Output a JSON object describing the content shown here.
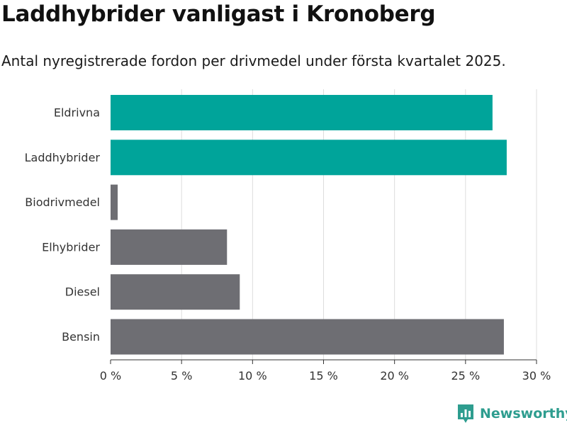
{
  "header": {
    "title": "Laddhybrider vanligast i Kronoberg",
    "subtitle": "Antal nyregistrerade fordon per drivmedel under första kvartalet 2025."
  },
  "brand": {
    "name": "Newsworthy",
    "icon": "newsworthy-logo-icon",
    "color": "#2e9d8f"
  },
  "chart_data": {
    "type": "bar",
    "orientation": "horizontal",
    "categories": [
      "Eldrivna",
      "Laddhybrider",
      "Biodrivmedel",
      "Elhybrider",
      "Diesel",
      "Bensin"
    ],
    "values": [
      26.9,
      27.9,
      0.5,
      8.2,
      9.1,
      27.7
    ],
    "unit": "%",
    "xlim": [
      0,
      30
    ],
    "xticks": [
      0,
      5,
      10,
      15,
      20,
      25,
      30
    ],
    "xtick_labels": [
      "0 %",
      "5 %",
      "10 %",
      "15 %",
      "20 %",
      "25 %",
      "30 %"
    ],
    "bar_colors": [
      "#00a49a",
      "#00a49a",
      "#6e6e73",
      "#6e6e73",
      "#6e6e73",
      "#6e6e73"
    ],
    "grid": "vertical",
    "xlabel": "",
    "ylabel": ""
  }
}
